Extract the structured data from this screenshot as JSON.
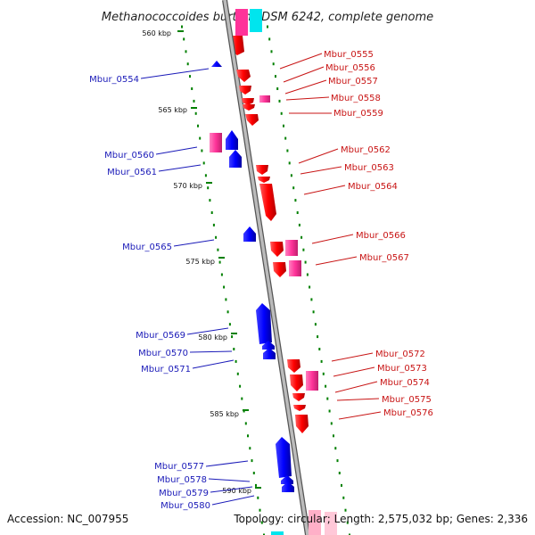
{
  "title": "Methanococcoides burtonii DSM 6242, complete genome",
  "footer": {
    "accession": "Accession: NC_007955",
    "topology": "Topology: circular; Length: 2,575,032 bp; Genes: 2,336"
  },
  "ticks": [
    "560 kbp",
    "565 kbp",
    "570 kbp",
    "575 kbp",
    "580 kbp",
    "585 kbp",
    "590 kbp"
  ],
  "genes_left": [
    "Mbur_0554",
    "Mbur_0560",
    "Mbur_0561",
    "Mbur_0565",
    "Mbur_0569",
    "Mbur_0570",
    "Mbur_0571",
    "Mbur_0577",
    "Mbur_0578",
    "Mbur_0579",
    "Mbur_0580"
  ],
  "genes_right": [
    "Mbur_0555",
    "Mbur_0556",
    "Mbur_0557",
    "Mbur_0558",
    "Mbur_0559",
    "Mbur_0562",
    "Mbur_0563",
    "Mbur_0564",
    "Mbur_0566",
    "Mbur_0567",
    "Mbur_0572",
    "Mbur_0573",
    "Mbur_0574",
    "Mbur_0575",
    "Mbur_0576"
  ],
  "colors": {
    "forward_gene": "#ff0000",
    "reverse_gene": "#0000ff",
    "rna_forward": "#ff3399",
    "rna_reverse": "#ff3399",
    "backbone": "#aaaaaa",
    "tick": "#008000",
    "left_label": "#1a1ab8",
    "right_label": "#c81414"
  }
}
